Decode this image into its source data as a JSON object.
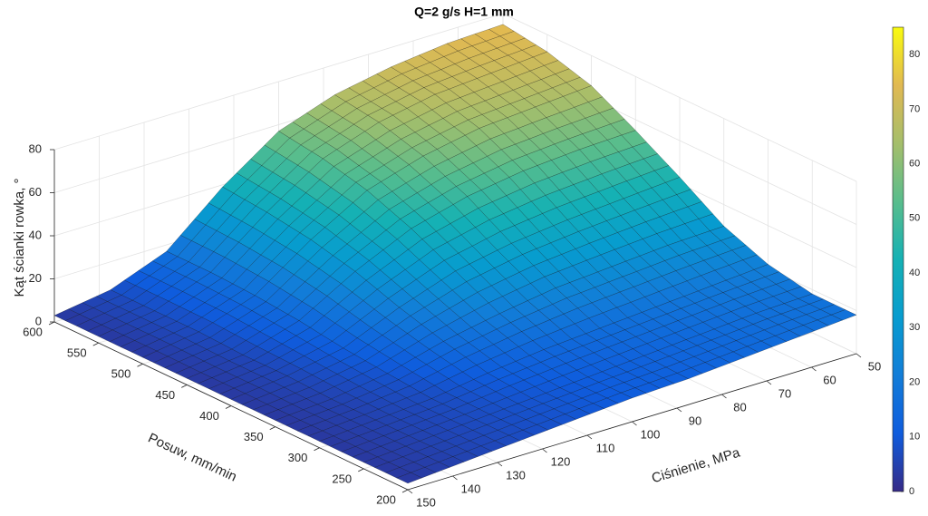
{
  "chart_data": {
    "type": "surface",
    "title": "Q=2 g/s H=1 mm",
    "xlabel": "Ciśnienie, MPa",
    "ylabel": "Posuw, mm/min",
    "zlabel": "Kąt ścianki rowka, °",
    "x": [
      50,
      62.5,
      75,
      87.5,
      100,
      112.5,
      125,
      137.5,
      150
    ],
    "y": [
      200,
      250,
      300,
      350,
      400,
      450,
      500,
      550,
      600
    ],
    "z": [
      [
        18,
        16,
        14,
        12,
        11,
        9,
        7,
        5,
        3
      ],
      [
        18,
        17,
        15,
        13,
        11,
        9,
        7,
        5,
        3
      ],
      [
        22,
        20,
        18,
        16,
        14,
        11,
        7,
        5,
        3
      ],
      [
        30,
        29,
        27,
        25,
        21,
        16,
        9,
        5,
        3
      ],
      [
        43,
        41,
        39,
        36,
        31,
        22,
        11,
        6,
        3
      ],
      [
        55,
        54,
        52,
        48,
        41,
        29,
        14,
        6,
        3
      ],
      [
        66,
        64,
        62,
        57,
        49,
        34,
        16,
        7,
        3
      ],
      [
        72,
        70,
        68,
        63,
        54,
        37,
        17,
        7,
        3
      ],
      [
        75,
        74,
        71,
        66,
        57,
        39,
        17,
        7,
        3
      ]
    ],
    "xlim": [
      50,
      150
    ],
    "xticks": [
      50,
      60,
      70,
      80,
      90,
      100,
      110,
      120,
      130,
      140,
      150
    ],
    "ylim": [
      200,
      600
    ],
    "yticks": [
      200,
      250,
      300,
      350,
      400,
      450,
      500,
      550,
      600
    ],
    "zlim": [
      0,
      80
    ],
    "zticks": [
      0,
      20,
      40,
      60,
      80
    ],
    "clim": [
      0,
      85
    ],
    "cticks": [
      0,
      10,
      20,
      30,
      40,
      50,
      60,
      70,
      80
    ],
    "colormap": [
      "#352a87",
      "#0f5cdd",
      "#127dd8",
      "#079ccf",
      "#15b1b4",
      "#59bd8c",
      "#a5be6b",
      "#e1b952",
      "#f9fb0e"
    ],
    "grid": true
  }
}
